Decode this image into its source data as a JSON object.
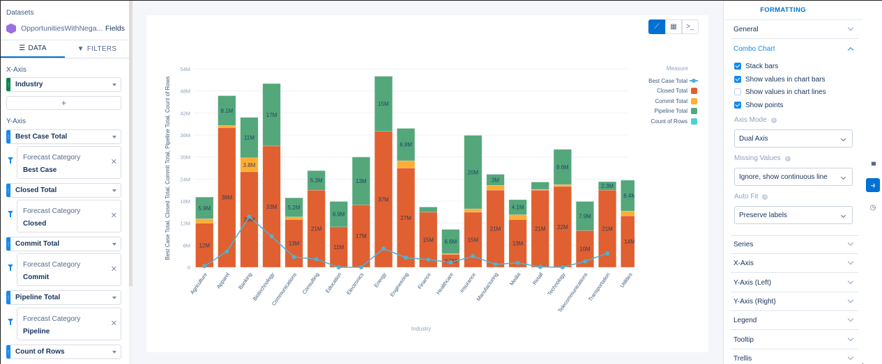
{
  "left_panel": {
    "datasets_label": "Datasets",
    "dataset_name": "OpportunitiesWithNega...",
    "fields_link": "Fields",
    "tabs": [
      {
        "label": "DATA",
        "icon": "list-icon",
        "active": true
      },
      {
        "label": "FILTERS",
        "icon": "funnel-icon",
        "active": false
      }
    ],
    "x_axis_label": "X-Axis",
    "x_axis_field": "Industry",
    "add_label": "+",
    "y_axis_label": "Y-Axis",
    "measures": [
      {
        "label": "Best Case Total",
        "filter_key": "Forecast Category",
        "filter_value": "Best Case"
      },
      {
        "label": "Closed Total",
        "filter_key": "Forecast Category",
        "filter_value": "Closed"
      },
      {
        "label": "Commit Total",
        "filter_key": "Forecast Category",
        "filter_value": "Commit"
      },
      {
        "label": "Pipeline Total",
        "filter_key": "Forecast Category",
        "filter_value": "Pipeline"
      },
      {
        "label": "Count of Rows"
      }
    ]
  },
  "view_buttons": [
    {
      "name": "chart-view",
      "glyph": "⟋",
      "active": true
    },
    {
      "name": "table-view",
      "glyph": "▦",
      "active": false
    },
    {
      "name": "query-view",
      "glyph": ">_",
      "active": false
    }
  ],
  "legend": {
    "title": "Measure",
    "items": [
      {
        "label": "Best Case Total",
        "type": "line",
        "color": "#4fb2d3"
      },
      {
        "label": "Closed Total",
        "type": "bar",
        "color": "#e06031"
      },
      {
        "label": "Commit Total",
        "type": "bar",
        "color": "#ffad33"
      },
      {
        "label": "Pipeline Total",
        "type": "bar",
        "color": "#54a77b"
      },
      {
        "label": "Count of Rows",
        "type": "bar",
        "color": "#4bd1d2"
      }
    ]
  },
  "chart_data": {
    "type": "bar",
    "subtype": "stacked bar + line combo",
    "xlabel": "Industry",
    "ylabel": "Best Case Total, Closed Total, Commit Total, Pipeline Total, Count of Rows",
    "ylim": [
      0,
      54
    ],
    "yunit": "M",
    "yticks": [
      "0",
      "6M",
      "12M",
      "18M",
      "24M",
      "30M",
      "36M",
      "42M",
      "48M",
      "54M"
    ],
    "grid": true,
    "legend_position": "right",
    "categories": [
      "Agriculture",
      "Apparel",
      "Banking",
      "Biotechnology",
      "Communications",
      "Consulting",
      "Education",
      "Electronics",
      "Energy",
      "Engineering",
      "Finance",
      "Healthcare",
      "Insurance",
      "Manufacturing",
      "Media",
      "Retail",
      "Technology",
      "Telecommunications",
      "Transportation",
      "Utilities"
    ],
    "series": [
      {
        "name": "Closed Total",
        "type": "bar",
        "color": "#e06031",
        "values": [
          12,
          38,
          26,
          33,
          13,
          21,
          11,
          17,
          37,
          27,
          15,
          3.5,
          15,
          21,
          13,
          21,
          22,
          10,
          21,
          14
        ],
        "labels": [
          "12M",
          "38M",
          "26M",
          "33M",
          "13M",
          "21M",
          "11M",
          "17M",
          "37M",
          "27M",
          "15M",
          "3.5M",
          "15M",
          "21M",
          "13M",
          "21M",
          "22M",
          "10M",
          "21M",
          "14M"
        ]
      },
      {
        "name": "Commit Total",
        "type": "bar",
        "color": "#ffad33",
        "values": [
          1.2,
          0.6,
          3.8,
          0,
          0.7,
          0,
          0,
          0,
          0,
          2,
          0,
          0.2,
          0.9,
          1.3,
          1.3,
          0.2,
          0.5,
          0,
          0,
          1.3
        ],
        "labels": [
          "",
          "",
          "3.8M",
          "",
          "",
          "",
          "",
          "",
          "",
          "",
          "",
          "",
          "",
          "",
          "",
          "",
          "",
          "",
          "",
          ""
        ]
      },
      {
        "name": "Pipeline Total",
        "type": "bar",
        "color": "#54a77b",
        "values": [
          5.9,
          8.1,
          11,
          17,
          5.2,
          5.3,
          6.9,
          13,
          15,
          8.8,
          1.4,
          6.6,
          20,
          3,
          4.1,
          2,
          9.6,
          7.9,
          2.3,
          8.4
        ],
        "labels": [
          "5.9M",
          "8.1M",
          "11M",
          "17M",
          "5.2M",
          "5.3M",
          "6.9M",
          "13M",
          "15M",
          "8.8M",
          "",
          "6.6M",
          "20M",
          "3M",
          "4.1M",
          "",
          "9.6M",
          "7.9M",
          "2.3M",
          "8.4M"
        ]
      },
      {
        "name": "Best Case Total",
        "type": "line",
        "color": "#4fb2d3",
        "values": [
          0.3,
          4.3,
          13.8,
          8.4,
          2.8,
          2.2,
          0,
          0,
          5.1,
          2.6,
          2.1,
          1.3,
          3,
          0.8,
          1.2,
          0.1,
          0,
          1.6,
          3.8,
          null
        ]
      },
      {
        "name": "Count of Rows",
        "type": "bar",
        "color": "#4bd1d2",
        "values": []
      }
    ]
  },
  "right_panel": {
    "tab_label": "FORMATTING",
    "sections_top": [
      {
        "label": "General",
        "open": false
      },
      {
        "label": "Combo Chart",
        "open": true
      }
    ],
    "combo": {
      "checkboxes": [
        {
          "label": "Stack bars",
          "checked": true
        },
        {
          "label": "Show values in chart bars",
          "checked": true
        },
        {
          "label": "Show values in chart lines",
          "checked": false
        },
        {
          "label": "Show points",
          "checked": true
        }
      ],
      "axis_mode_label": "Axis Mode",
      "axis_mode_value": "Dual Axis",
      "missing_values_label": "Missing Values",
      "missing_values_value": "Ignore, show continuous line",
      "auto_fit_label": "Auto Fit",
      "auto_fit_value": "Preserve labels"
    },
    "sections_bottom": [
      {
        "label": "Series"
      },
      {
        "label": "X-Axis"
      },
      {
        "label": "Y-Axis (Left)"
      },
      {
        "label": "Y-Axis (Right)"
      },
      {
        "label": "Legend"
      },
      {
        "label": "Tooltip"
      },
      {
        "label": "Trellis"
      }
    ]
  },
  "rail": [
    {
      "name": "chart-type-icon",
      "glyph": "▮▮▮",
      "active": false
    },
    {
      "name": "paint-roller-icon",
      "glyph": "⚒",
      "active": true
    },
    {
      "name": "clock-icon",
      "glyph": "◷",
      "active": false
    }
  ]
}
